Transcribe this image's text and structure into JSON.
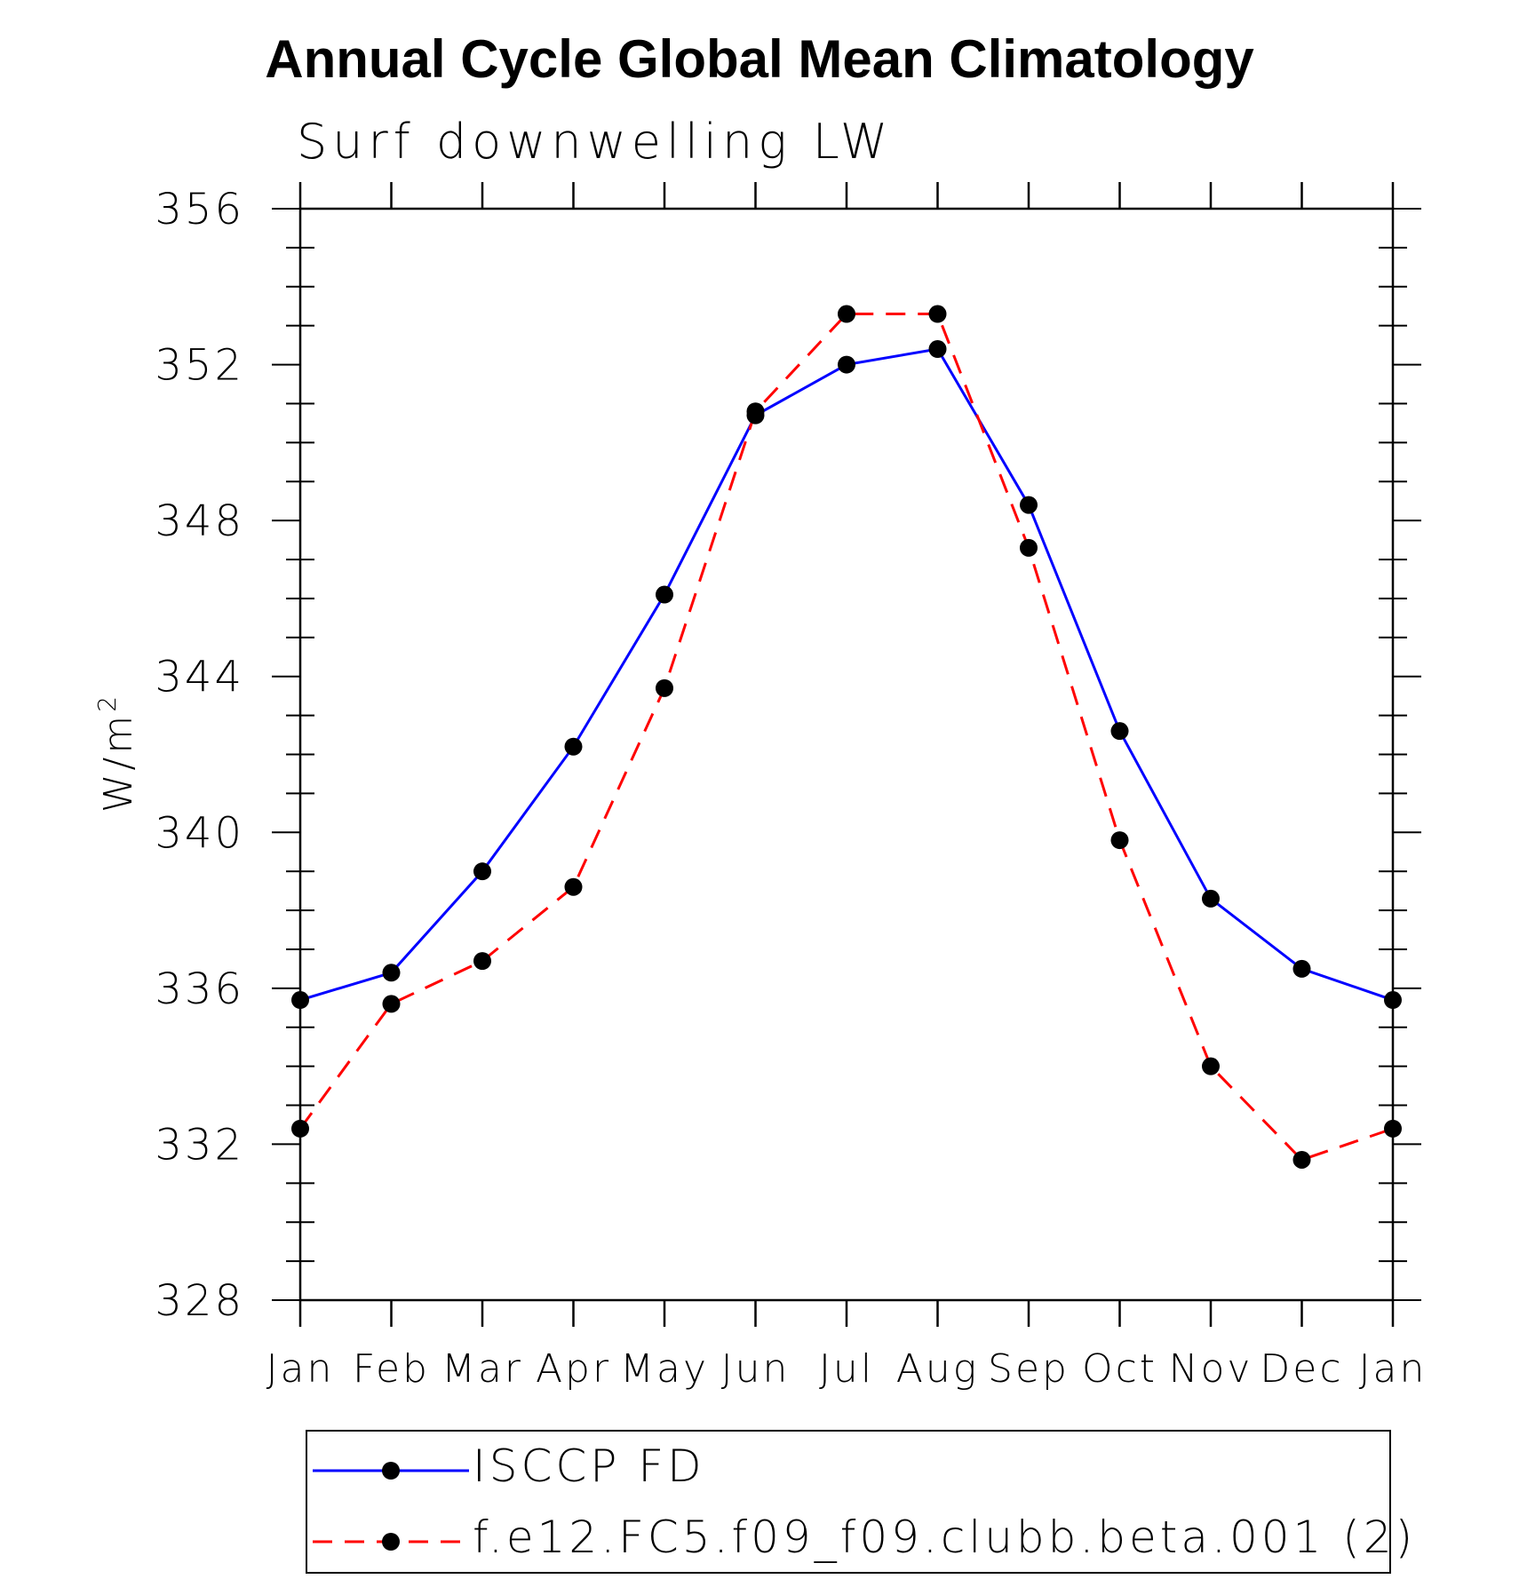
{
  "chart_data": {
    "type": "line",
    "title": "Annual Cycle Global Mean Climatology",
    "subtitle": "Surf downwelling LW",
    "ylabel": "W/m",
    "ylabel_superscript": "2",
    "ylim": [
      328,
      356
    ],
    "yticks": [
      "328",
      "332",
      "336",
      "340",
      "344",
      "348",
      "352",
      "356"
    ],
    "categories": [
      "Jan",
      "Feb",
      "Mar",
      "Apr",
      "May",
      "Jun",
      "Jul",
      "Aug",
      "Sep",
      "Oct",
      "Nov",
      "Dec",
      "Jan"
    ],
    "grid": false,
    "legend_position": "bottom",
    "series": [
      {
        "name": "ISCCP FD",
        "color": "#0000ff",
        "style": "solid",
        "marker": "filled-circle",
        "values": [
          335.7,
          336.4,
          339.0,
          342.2,
          346.1,
          350.7,
          352.0,
          352.4,
          348.4,
          342.6,
          338.3,
          336.5,
          335.7
        ]
      },
      {
        "name": "f.e12.FC5.f09_f09.clubb.beta.001 (2)",
        "color": "#ff0000",
        "style": "dashed",
        "marker": "filled-circle",
        "values": [
          332.4,
          335.6,
          336.7,
          338.6,
          343.7,
          350.8,
          353.3,
          353.3,
          347.3,
          339.8,
          334.0,
          331.6,
          332.4
        ]
      }
    ]
  }
}
